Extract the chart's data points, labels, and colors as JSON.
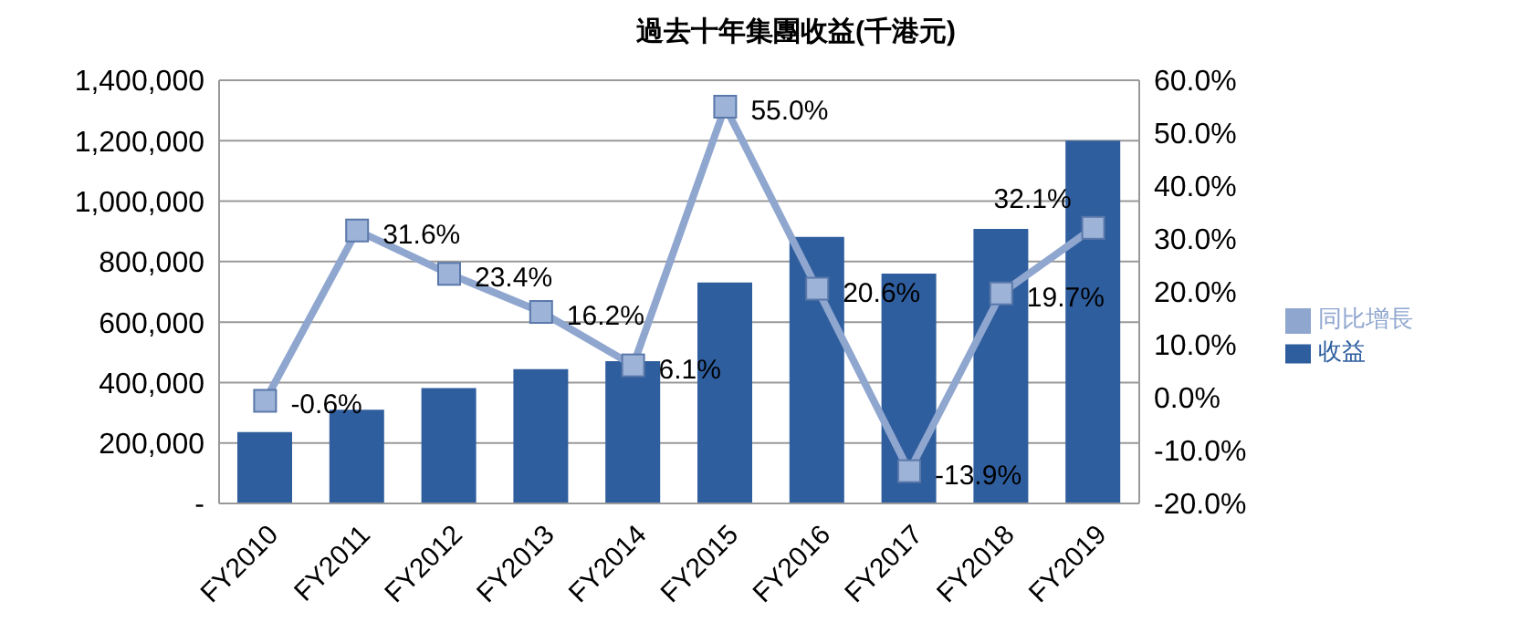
{
  "chart_data": {
    "type": "bar",
    "title": "過去十年集團收益(千港元)",
    "categories": [
      "FY2010",
      "FY2011",
      "FY2012",
      "FY2013",
      "FY2014",
      "FY2015",
      "FY2016",
      "FY2017",
      "FY2018",
      "FY2019"
    ],
    "series": [
      {
        "name": "收益",
        "color": "#2f5e9e",
        "values": [
          236000,
          310000,
          382000,
          444000,
          471000,
          731000,
          882000,
          760000,
          908000,
          1200000
        ]
      },
      {
        "name": "同比增長",
        "type": "line",
        "axis": "y2",
        "color": "#8fa6cf",
        "marker": "square",
        "values": [
          -0.6,
          31.6,
          23.4,
          16.2,
          6.1,
          55.0,
          20.6,
          -13.9,
          19.7,
          32.1
        ],
        "value_labels": [
          "-0.6%",
          "31.6%",
          "23.4%",
          "16.2%",
          "6.1%",
          "55.0%",
          "20.6%",
          "-13.9%",
          "19.7%",
          "32.1%"
        ]
      }
    ],
    "ylim": [
      0,
      1400000
    ],
    "yticks": [
      {
        "value": 0,
        "label": "-"
      },
      {
        "value": 200000,
        "label": "200,000"
      },
      {
        "value": 400000,
        "label": "400,000"
      },
      {
        "value": 600000,
        "label": "600,000"
      },
      {
        "value": 800000,
        "label": "800,000"
      },
      {
        "value": 1000000,
        "label": "1,000,000"
      },
      {
        "value": 1200000,
        "label": "1,200,000"
      },
      {
        "value": 1400000,
        "label": "1,400,000"
      }
    ],
    "y2lim": [
      -20,
      60
    ],
    "y2ticks": [
      {
        "value": -20,
        "label": "-20.0%"
      },
      {
        "value": -10,
        "label": "-10.0%"
      },
      {
        "value": 0,
        "label": "0.0%"
      },
      {
        "value": 10,
        "label": "10.0%"
      },
      {
        "value": 20,
        "label": "20.0%"
      },
      {
        "value": 30,
        "label": "30.0%"
      },
      {
        "value": 40,
        "label": "40.0%"
      },
      {
        "value": 50,
        "label": "50.0%"
      },
      {
        "value": 60,
        "label": "60.0%"
      }
    ],
    "grid": "y",
    "legend": "right"
  }
}
